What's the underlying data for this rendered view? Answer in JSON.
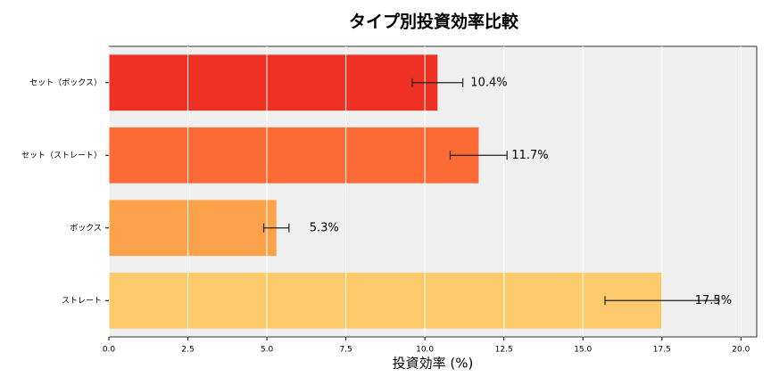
{
  "chart_data": {
    "type": "barh",
    "title": "タイプ別投資効率比較",
    "xlabel": "投資効率 (%)",
    "categories": [
      "セット（ボックス）",
      "セット（ストレート）",
      "ボックス",
      "ストレート"
    ],
    "values": [
      10.4,
      11.7,
      5.3,
      17.5
    ],
    "value_labels": [
      "10.4%",
      "11.7%",
      "5.3%",
      "17.5%"
    ],
    "errors": [
      0.8,
      0.9,
      0.4,
      1.8
    ],
    "colors": [
      "#ef3124",
      "#fc6a35",
      "#fca24b",
      "#fdca6b"
    ],
    "xlim": [
      0,
      20.5
    ],
    "xticks": [
      {
        "value": 0,
        "label": "0.0"
      },
      {
        "value": 2.5,
        "label": "2.5"
      },
      {
        "value": 5,
        "label": "5.0"
      },
      {
        "value": 7.5,
        "label": "7.5"
      },
      {
        "value": 10,
        "label": "10.0"
      },
      {
        "value": 12.5,
        "label": "12.5"
      },
      {
        "value": 15,
        "label": "15.0"
      },
      {
        "value": 17.5,
        "label": "17.5"
      },
      {
        "value": 20,
        "label": "20.0"
      }
    ],
    "grid": true
  }
}
